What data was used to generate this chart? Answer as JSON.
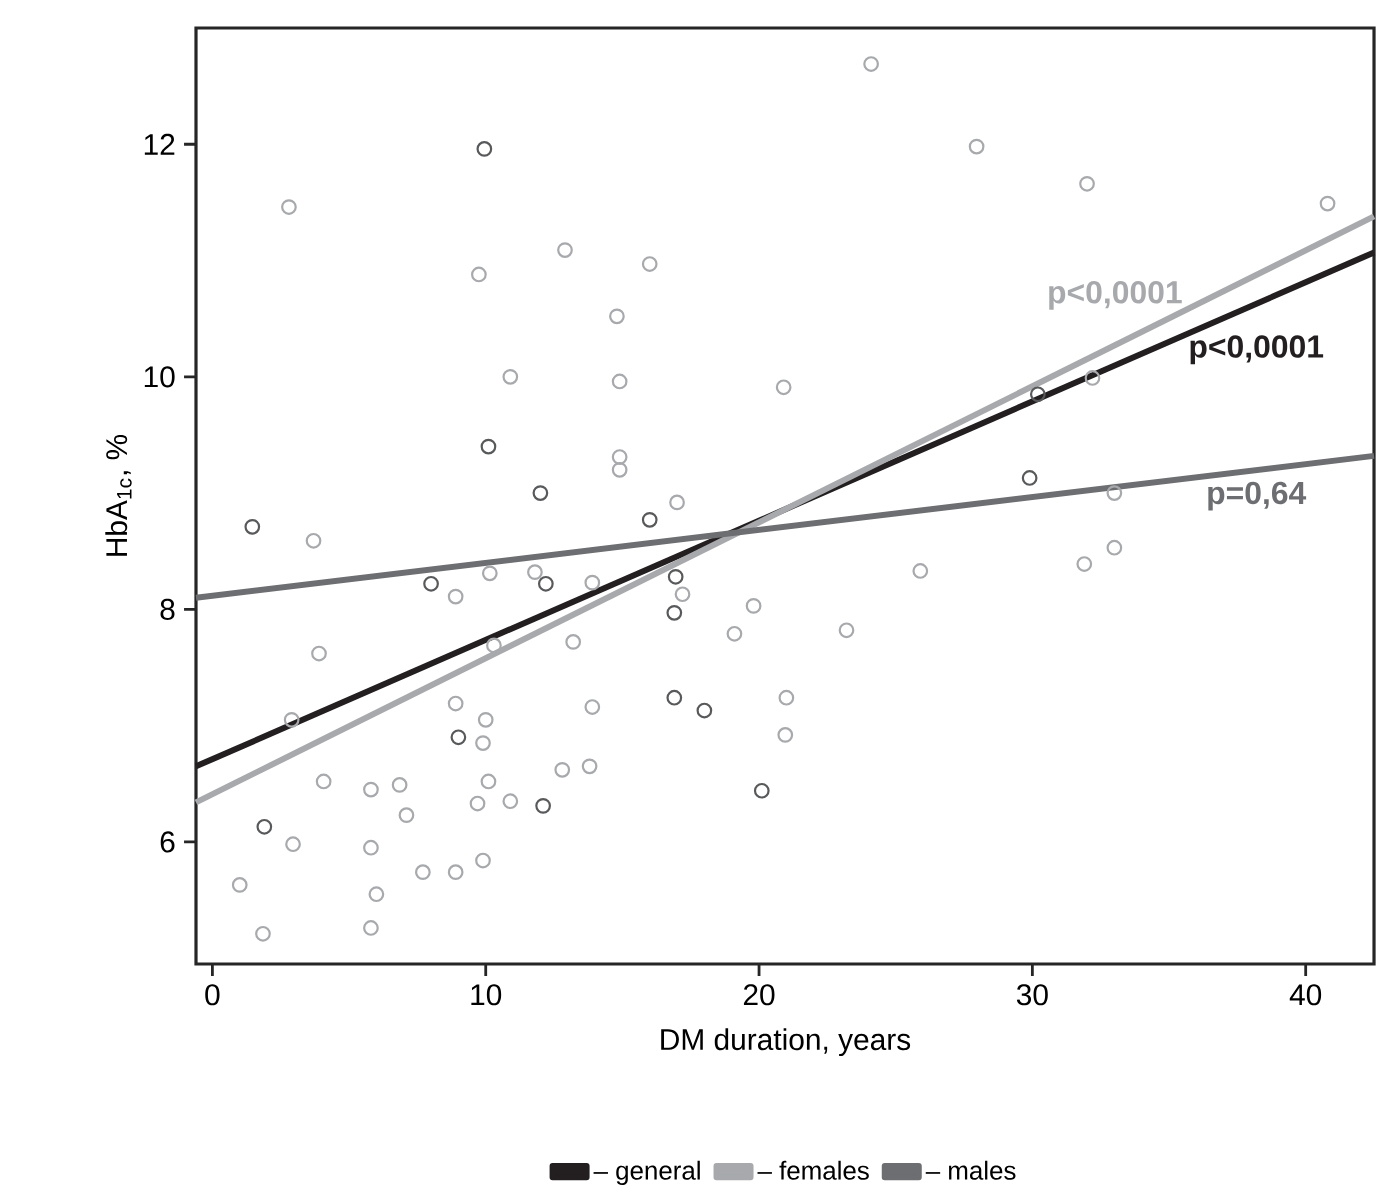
{
  "chart_data": {
    "type": "scatter",
    "xlabel": "DM duration, years",
    "ylabel": "HbA$_{1c}$, %",
    "xlim": [
      -0.6,
      42.5
    ],
    "ylim": [
      4.95,
      13.0
    ],
    "xticks": [
      0,
      10,
      20,
      30,
      40
    ],
    "yticks": [
      6,
      8,
      10,
      12
    ],
    "grid": false,
    "legend": "bottom",
    "marker": "circle",
    "series": [
      {
        "color": "#a7a9ac",
        "x": [
          2.8,
          12.9,
          16.0,
          9.75,
          14.8,
          10.9,
          14.9,
          20.9,
          14.9,
          14.9,
          17.0,
          24.1,
          27.96,
          32.0,
          40.8,
          32.2,
          33.0,
          33.0,
          31.9,
          25.9,
          19.8,
          23.2,
          21.0,
          20.96,
          3.7,
          8.9,
          10.15,
          11.8,
          13.9,
          17.2,
          19.1,
          3.9,
          10.3,
          13.2,
          2.9,
          8.9,
          10.0,
          13.9,
          9.9,
          4.07,
          5.8,
          6.85,
          10.1,
          7.1,
          9.7,
          10.9,
          12.8,
          13.8,
          2.95,
          5.8,
          1.0,
          7.7,
          8.9,
          9.9,
          6.0,
          1.85,
          5.8
        ],
        "values": [
          11.46,
          11.09,
          10.97,
          10.88,
          10.52,
          10.0,
          9.96,
          9.91,
          9.31,
          9.2,
          8.92,
          12.69,
          11.98,
          11.66,
          11.49,
          9.99,
          9.0,
          8.53,
          8.39,
          8.33,
          8.03,
          7.82,
          7.24,
          6.92,
          8.59,
          8.11,
          8.31,
          8.32,
          8.23,
          8.13,
          7.79,
          7.62,
          7.69,
          7.72,
          7.05,
          7.19,
          7.05,
          7.16,
          6.85,
          6.52,
          6.45,
          6.49,
          6.52,
          6.23,
          6.33,
          6.35,
          6.62,
          6.65,
          5.98,
          5.95,
          5.63,
          5.74,
          5.74,
          5.84,
          5.55,
          5.21,
          5.26
        ]
      },
      {
        "color": "#58595b",
        "x": [
          9.95,
          10.1,
          12.0,
          30.2,
          29.9,
          20.1,
          1.46,
          16.0,
          8.0,
          12.2,
          16.95,
          16.9,
          16.9,
          18.0,
          9.0,
          12.1,
          1.9
        ],
        "values": [
          11.96,
          9.4,
          9.0,
          9.85,
          9.13,
          6.44,
          8.71,
          8.77,
          8.22,
          8.22,
          8.28,
          7.97,
          7.24,
          7.13,
          6.9,
          6.31,
          6.13
        ]
      },
      {
        "type": "line",
        "marker": "none",
        "name": "– general",
        "color": "#231f20",
        "x": [
          -0.6,
          42.5
        ],
        "values": [
          6.65,
          11.07
        ]
      },
      {
        "type": "line",
        "marker": "none",
        "name": "– females",
        "color": "#a7a9ac",
        "x": [
          -0.6,
          42.5
        ],
        "values": [
          6.34,
          11.38
        ]
      },
      {
        "type": "line",
        "marker": "none",
        "name": "– males",
        "color": "#6d6e71",
        "x": [
          -0.6,
          42.5
        ],
        "values": [
          8.1,
          9.32
        ]
      }
    ],
    "annotations": [
      "p<0,0001",
      "p<0,0001",
      "p=0,64"
    ]
  }
}
